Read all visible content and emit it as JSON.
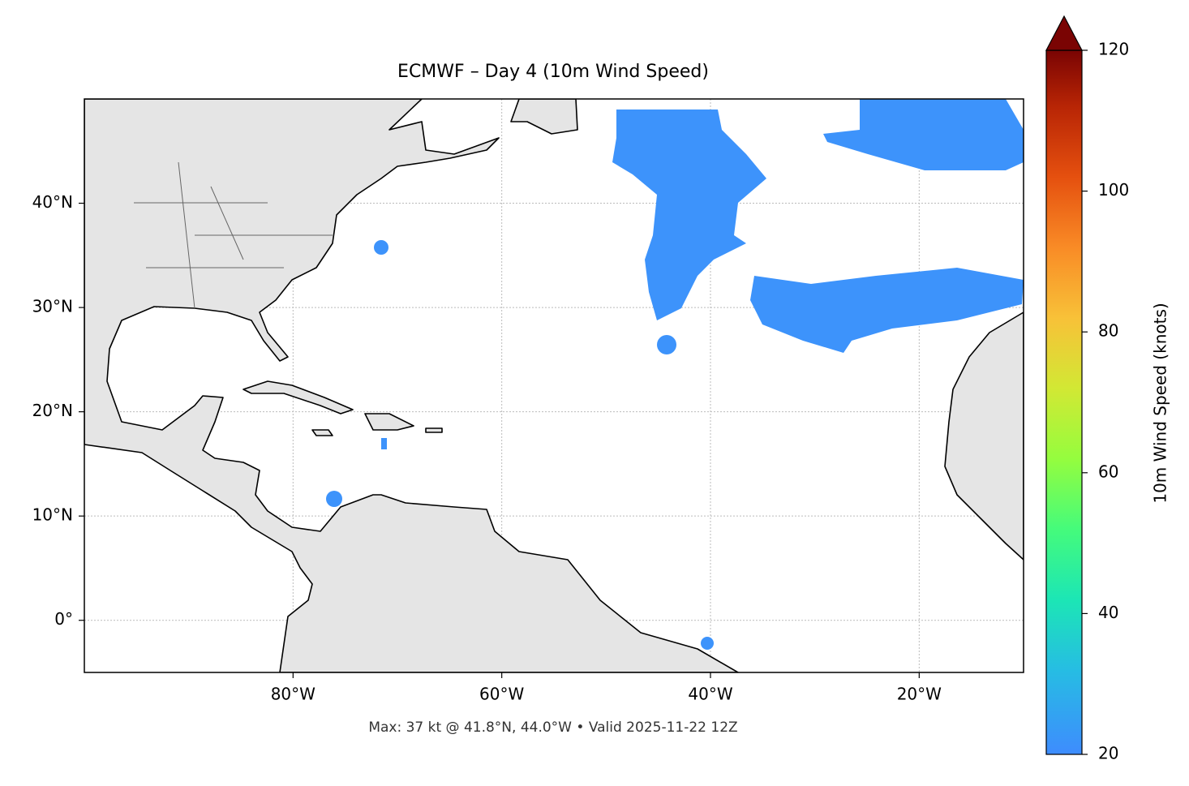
{
  "map": {
    "title": "ECMWF – Day 4 (10m Wind Speed)",
    "footnote": "Max: 37 kt @ 41.8°N, 44.0°W • Valid 2025-11-22 12Z",
    "lonlim": [
      -100,
      -10
    ],
    "latlim": [
      -5,
      50
    ],
    "lonticks": [
      {
        "value": -80,
        "label": "80°W"
      },
      {
        "value": -60,
        "label": "60°W"
      },
      {
        "value": -40,
        "label": "40°W"
      },
      {
        "value": -20,
        "label": "20°W"
      }
    ],
    "latticks": [
      {
        "value": 0,
        "label": "0°"
      },
      {
        "value": 10,
        "label": "10°N"
      },
      {
        "value": 20,
        "label": "20°N"
      },
      {
        "value": 30,
        "label": "30°N"
      },
      {
        "value": 40,
        "label": "40°N"
      }
    ],
    "grid": true,
    "colorbar": {
      "label": "10m Wind Speed (knots)",
      "lim": [
        20,
        120
      ],
      "ticks": [
        20,
        40,
        60,
        80,
        100,
        120
      ]
    }
  }
}
